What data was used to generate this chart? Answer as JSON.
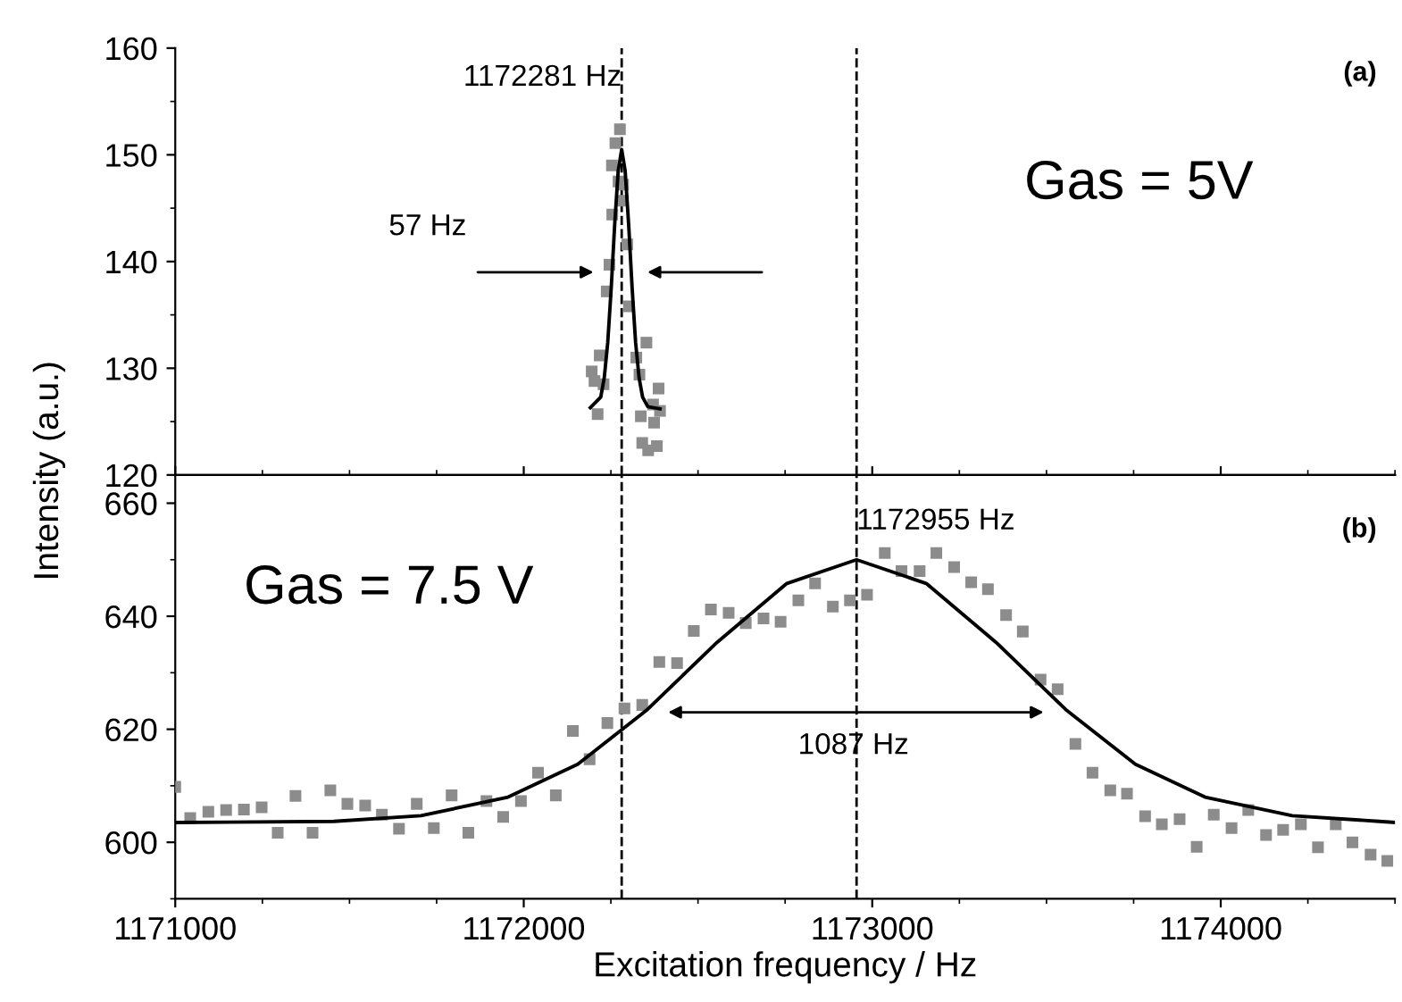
{
  "chart_data": [
    {
      "type": "scatter",
      "ylabel": "Intensity (a.u.)",
      "xlim": [
        1171000,
        1174500
      ],
      "xticks": [
        1171000,
        1172000,
        1173000,
        1174000
      ],
      "ylim": [
        120,
        160
      ],
      "yticks": [
        120,
        130,
        140,
        150,
        160
      ],
      "tick_labels": "y",
      "marker": "square",
      "grid": false,
      "series": [
        {
          "color": "#8c8c8c",
          "x": [
            1172276,
            1172263,
            1172253,
            1172284,
            1172272,
            1172285,
            1172254,
            1172297,
            1172246,
            1172302,
            1172238,
            1172352,
            1172323,
            1172218,
            1172195,
            1172203,
            1172229,
            1172332,
            1172387,
            1172212,
            1172371,
            1172391,
            1172336,
            1172374,
            1172340,
            1172357,
            1172382
          ],
          "values": [
            152.4,
            151.1,
            149.0,
            145.7,
            147.5,
            147.2,
            144.4,
            141.6,
            139.7,
            135.8,
            137.2,
            132.4,
            131.0,
            131.2,
            129.7,
            128.8,
            128.5,
            129.4,
            128.1,
            125.7,
            126.6,
            126.0,
            125.5,
            124.9,
            123.0,
            122.3,
            122.7
          ]
        },
        {
          "type": "line",
          "color": "#000000",
          "marker": "none",
          "x": [
            1172191,
            1172221,
            1172231,
            1172241,
            1172251,
            1172261,
            1172271,
            1172281,
            1172291,
            1172301,
            1172311,
            1172321,
            1172331,
            1172341,
            1172356,
            1172391
          ],
          "values": [
            126.3,
            127.3,
            129.1,
            132.4,
            137.5,
            143.5,
            148.5,
            150.5,
            148.5,
            143.5,
            137.5,
            132.4,
            129.1,
            127.3,
            126.4,
            126.2
          ]
        }
      ],
      "ref_lines": [
        {
          "axis": "x",
          "value": 1172281,
          "label": "1172281 Hz",
          "line_style": "dashed",
          "color": "#000000"
        },
        {
          "axis": "x",
          "value": 1172955,
          "line_style": "dashed",
          "color": "#000000"
        }
      ],
      "annotations": [
        "(a)",
        "57 Hz",
        "Gas = 5V"
      ]
    },
    {
      "type": "scatter",
      "xlabel": "Excitation frequency / Hz",
      "xlim": [
        1171000,
        1174500
      ],
      "xticks": [
        1171000,
        1172000,
        1173000,
        1174000
      ],
      "ylim": [
        590,
        665
      ],
      "yticks": [
        600,
        620,
        640,
        660
      ],
      "marker": "square",
      "grid": false,
      "series": [
        {
          "color": "#8c8c8c",
          "x": [
            1171000,
            1171043,
            1171095,
            1171146,
            1171197,
            1171248,
            1171294,
            1171345,
            1171394,
            1171445,
            1171494,
            1171545,
            1171593,
            1171642,
            1171693,
            1171742,
            1171793,
            1171841,
            1171893,
            1171941,
            1171992,
            1172041,
            1172092,
            1172141,
            1172189,
            1172240,
            1172289,
            1172340,
            1172389,
            1172440,
            1172488,
            1172537,
            1172588,
            1172637,
            1172688,
            1172737,
            1172788,
            1172836,
            1172887,
            1172936,
            1172985,
            1173036,
            1173084,
            1173136,
            1173184,
            1173235,
            1173284,
            1173332,
            1173384,
            1173432,
            1173483,
            1173532,
            1173583,
            1173632,
            1173683,
            1173731,
            1173783,
            1173831,
            1173882,
            1173931,
            1173980,
            1174031,
            1174079,
            1174130,
            1174179,
            1174230,
            1174279,
            1174330,
            1174378,
            1174430,
            1174478
          ],
          "values": [
            609.8,
            604.3,
            605.4,
            605.7,
            605.8,
            606.2,
            601.7,
            608.2,
            601.7,
            609.2,
            606.8,
            606.5,
            604.9,
            602.4,
            606.8,
            602.5,
            608.3,
            601.7,
            607.3,
            604.5,
            607.3,
            612.3,
            608.3,
            619.7,
            614.7,
            621.1,
            623.7,
            624.3,
            631.9,
            631.7,
            637.4,
            641.2,
            640.6,
            638.8,
            639.6,
            639.0,
            642.8,
            645.8,
            641.7,
            642.8,
            643.8,
            651.2,
            648.0,
            648.0,
            651.2,
            648.7,
            646.0,
            644.8,
            640.2,
            637.3,
            628.8,
            627.1,
            617.4,
            612.3,
            609.2,
            608.6,
            604.6,
            603.2,
            604.1,
            599.2,
            604.9,
            602.5,
            605.7,
            601.3,
            602.2,
            603.2,
            599.1,
            603.2,
            600.0,
            597.8,
            596.7
          ]
        },
        {
          "type": "line",
          "color": "#000000",
          "marker": "none",
          "x": [
            1171000,
            1171455,
            1171705,
            1171955,
            1172155,
            1172355,
            1172555,
            1172755,
            1172955,
            1173155,
            1173355,
            1173555,
            1173755,
            1173955,
            1174205,
            1174455,
            1174500
          ],
          "values": [
            603.5,
            603.7,
            604.7,
            608.0,
            613.8,
            623.5,
            635.4,
            645.8,
            650.0,
            645.8,
            635.4,
            623.5,
            613.8,
            608.0,
            604.7,
            603.7,
            603.5
          ]
        }
      ],
      "ref_lines": [
        {
          "axis": "x",
          "value": 1172281,
          "line_style": "dashed",
          "color": "#000000"
        },
        {
          "axis": "x",
          "value": 1172955,
          "label": "1172955 Hz",
          "line_style": "dashed",
          "color": "#000000"
        }
      ],
      "annotations": [
        "(b)",
        "Gas = 7.5 V",
        "1087 Hz"
      ]
    }
  ]
}
